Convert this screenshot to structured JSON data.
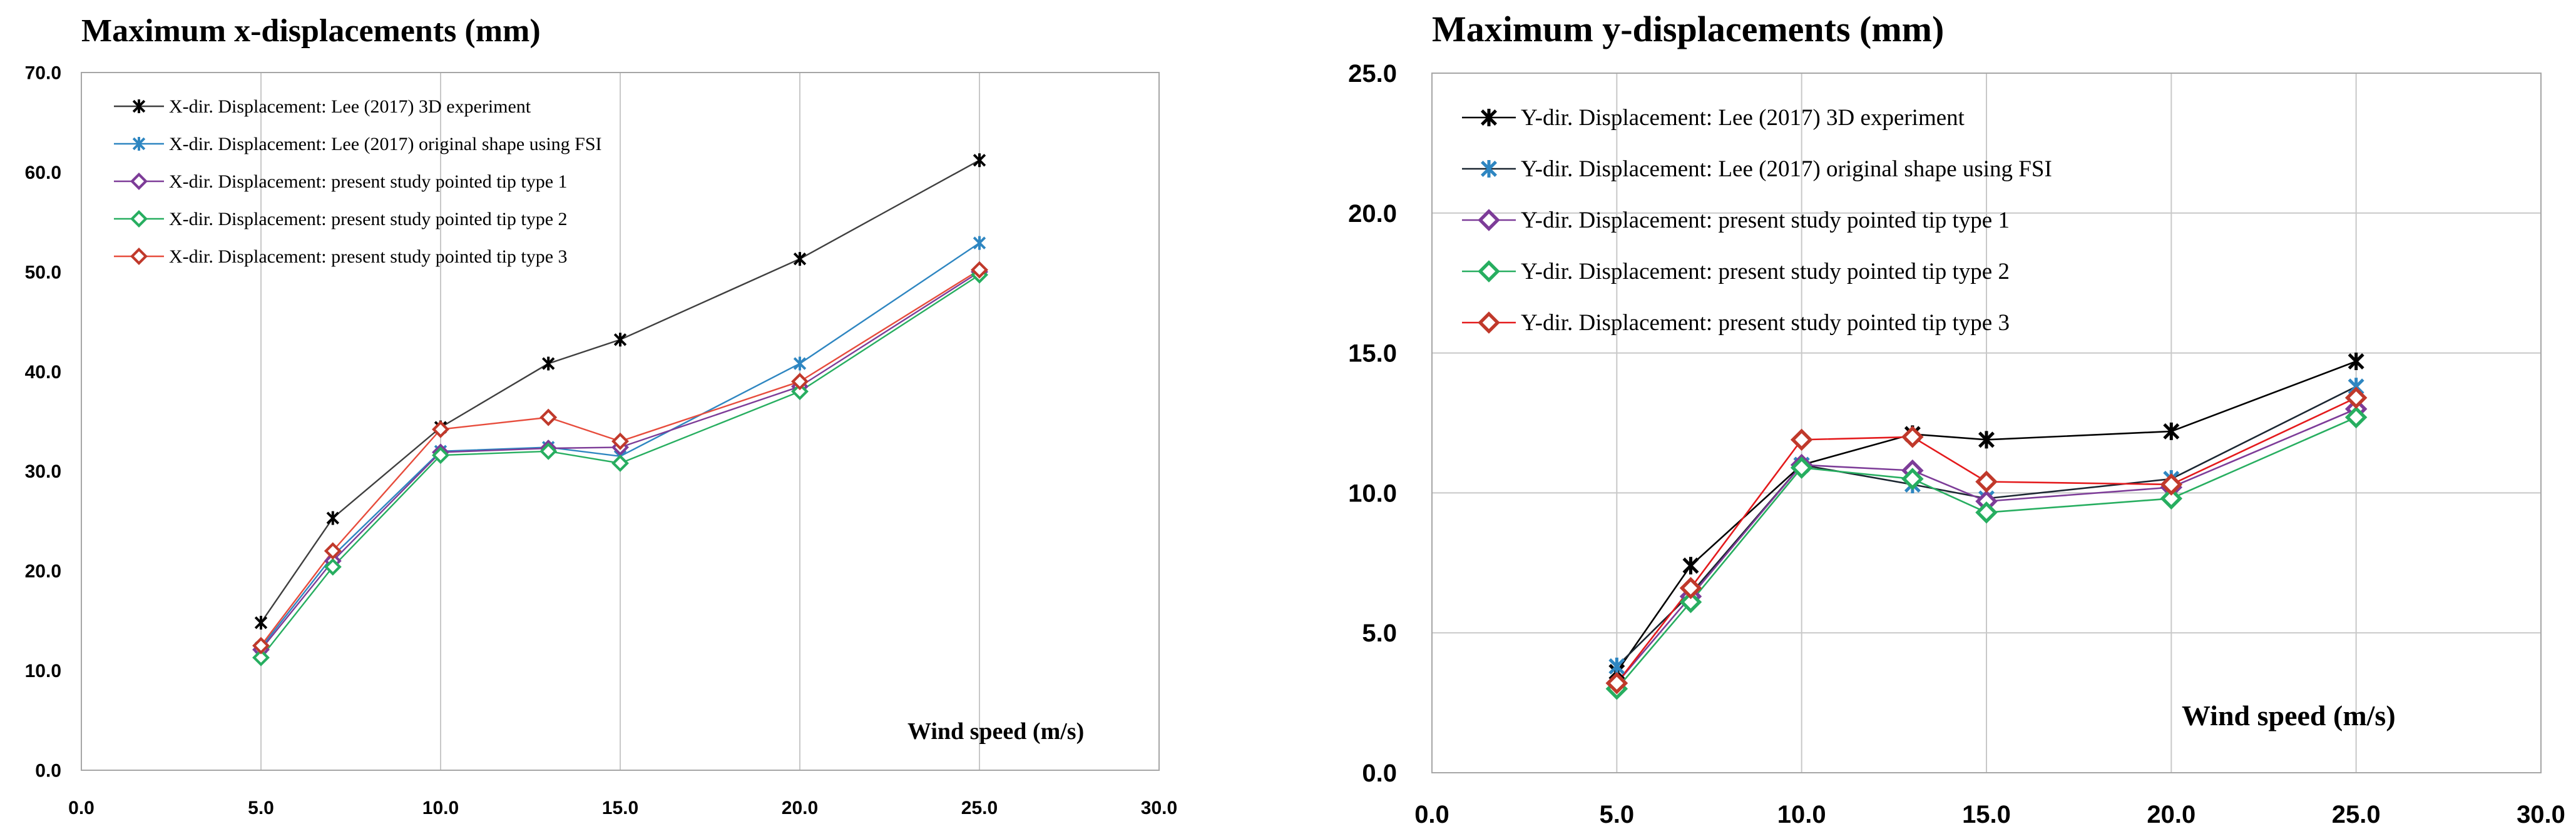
{
  "chart_data": [
    {
      "type": "line",
      "title": "Maximum x-displacements (mm)",
      "xlabel": "Wind speed (m/s)",
      "ylabel": "",
      "xlim": [
        0,
        30
      ],
      "ylim": [
        0,
        70
      ],
      "xticks": [
        0,
        5,
        10,
        15,
        20,
        25,
        30
      ],
      "yticks": [
        0,
        10,
        20,
        30,
        40,
        50,
        60,
        70
      ],
      "x": [
        5,
        7,
        10,
        13,
        15,
        20,
        25
      ],
      "grid": "vertical",
      "legend_position": "top-left",
      "series": [
        {
          "name": "X-dir. Displacement: Lee (2017) 3D experiment",
          "color": "#3f3f3f",
          "marker": "asterisk-black",
          "values": [
            14.8,
            25.3,
            34.4,
            40.8,
            43.2,
            51.3,
            61.2
          ]
        },
        {
          "name": "X-dir. Displacement: Lee (2017) original shape using FSI",
          "color": "#2e86c1",
          "marker": "asterisk-blue",
          "values": [
            12.3,
            21.5,
            32.0,
            32.4,
            31.5,
            40.8,
            52.9
          ]
        },
        {
          "name": "X-dir. Displacement: present study pointed tip type 1",
          "color": "#7d3c98",
          "marker": "diamond-purple",
          "values": [
            12.1,
            21.0,
            31.9,
            32.3,
            32.4,
            38.5,
            50.0
          ]
        },
        {
          "name": "X-dir. Displacement: present study pointed tip type 2",
          "color": "#27ae60",
          "marker": "diamond-green",
          "values": [
            11.3,
            20.4,
            31.6,
            32.0,
            30.8,
            38.0,
            49.7
          ]
        },
        {
          "name": "X-dir. Displacement: present study pointed tip type 3",
          "color": "#e74c3c",
          "marker": "diamond-red",
          "values": [
            12.5,
            22.0,
            34.2,
            35.4,
            33.0,
            39.0,
            50.2
          ]
        }
      ]
    },
    {
      "type": "line",
      "title": "Maximum y-displacements (mm)",
      "xlabel": "Wind speed (m/s)",
      "ylabel": "",
      "xlim": [
        0,
        30
      ],
      "ylim": [
        0,
        25
      ],
      "xticks": [
        0,
        5,
        10,
        15,
        20,
        25,
        30
      ],
      "yticks": [
        0,
        5,
        10,
        15,
        20,
        25
      ],
      "x": [
        5,
        7,
        10,
        13,
        15,
        20,
        25
      ],
      "grid": "both",
      "legend_position": "top-left",
      "series": [
        {
          "name": "Y-dir. Displacement: Lee (2017) 3D experiment",
          "color": "#000000",
          "marker": "asterisk-black",
          "values": [
            3.6,
            7.4,
            11.0,
            12.1,
            11.9,
            12.2,
            14.7
          ]
        },
        {
          "name": "Y-dir. Displacement: Lee (2017) original shape using FSI",
          "color": "#1b2631",
          "marker": "asterisk-blue",
          "values": [
            3.8,
            6.4,
            11.0,
            10.3,
            9.8,
            10.5,
            13.8
          ]
        },
        {
          "name": "Y-dir. Displacement: present study pointed tip type 1",
          "color": "#7d3c98",
          "marker": "diamond-purple",
          "values": [
            3.2,
            6.3,
            11.0,
            10.8,
            9.7,
            10.2,
            13.0
          ]
        },
        {
          "name": "Y-dir. Displacement: present study pointed tip type 2",
          "color": "#27ae60",
          "marker": "diamond-green",
          "values": [
            3.0,
            6.1,
            10.9,
            10.5,
            9.3,
            9.8,
            12.7
          ]
        },
        {
          "name": "Y-dir. Displacement: present study pointed tip type 3",
          "color": "#e41a1c",
          "marker": "diamond-red",
          "values": [
            3.2,
            6.6,
            11.9,
            12.0,
            10.4,
            10.3,
            13.4
          ]
        }
      ]
    }
  ]
}
